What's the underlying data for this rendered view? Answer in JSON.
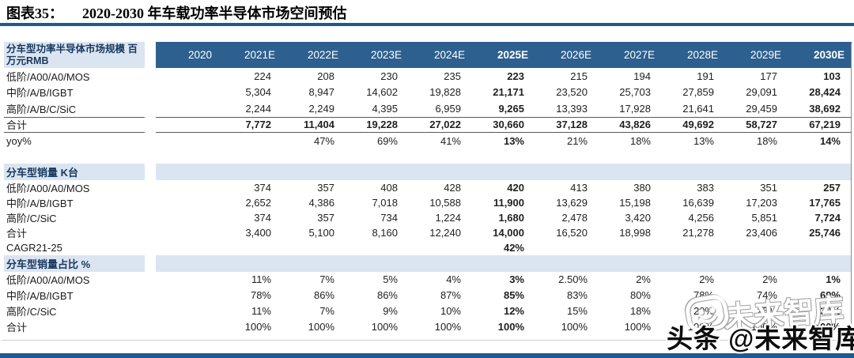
{
  "title": {
    "prefix": "图表35：",
    "text": "2020-2030 年车载功率半导体市场空间预估"
  },
  "colors": {
    "header_band": "#2d608e",
    "rule_color": "#1e5a8c",
    "section_bg": "#dbe5f1",
    "label_text": "#17375e"
  },
  "table": {
    "corner_header": "分车型功率半导体市场规模 百万元RMB",
    "col_headers": [
      "2020",
      "2021E",
      "2022E",
      "2023E",
      "2024E",
      "2025E",
      "2026E",
      "2027E",
      "2028E",
      "2029E",
      "2030E"
    ],
    "bold_col_indexes": [
      5,
      10
    ],
    "sections": [
      {
        "header": null,
        "gap_after": true,
        "rows": [
          {
            "label": "低阶/A00/A0/MOS",
            "values": [
              "",
              "224",
              "208",
              "230",
              "235",
              "223",
              "215",
              "194",
              "191",
              "177",
              "103"
            ]
          },
          {
            "label": "中阶/A/B/IGBT",
            "values": [
              "",
              "5,304",
              "8,947",
              "14,602",
              "19,828",
              "21,171",
              "23,520",
              "25,703",
              "27,859",
              "29,091",
              "28,424"
            ]
          },
          {
            "label": "高阶/A/B/C/SiC",
            "values": [
              "",
              "2,244",
              "2,249",
              "4,395",
              "6,959",
              "9,265",
              "13,393",
              "17,928",
              "21,641",
              "29,459",
              "38,692"
            ]
          },
          {
            "label": "合计",
            "bold_row": true,
            "rule": true,
            "values": [
              "",
              "7,772",
              "11,404",
              "19,228",
              "27,022",
              "30,660",
              "37,128",
              "43,826",
              "49,692",
              "58,727",
              "67,219"
            ]
          },
          {
            "label": "yoy%",
            "values": [
              "",
              "",
              "47%",
              "69%",
              "41%",
              "13%",
              "21%",
              "18%",
              "13%",
              "18%",
              "14%"
            ]
          }
        ]
      },
      {
        "header": "分车型销量 K台",
        "rows": [
          {
            "label": "低阶/A00/A0/MOS",
            "values": [
              "",
              "374",
              "357",
              "408",
              "428",
              "420",
              "413",
              "380",
              "383",
              "351",
              "257"
            ]
          },
          {
            "label": "中阶/A/B/IGBT",
            "values": [
              "",
              "2,652",
              "4,386",
              "7,018",
              "10,588",
              "11,900",
              "13,629",
              "15,198",
              "16,639",
              "17,203",
              "17,765"
            ]
          },
          {
            "label": "高阶/C/SiC",
            "values": [
              "",
              "374",
              "357",
              "734",
              "1,224",
              "1,680",
              "2,478",
              "3,420",
              "4,256",
              "5,851",
              "7,724"
            ]
          },
          {
            "label": "合计",
            "values": [
              "",
              "3,400",
              "5,100",
              "8,160",
              "12,240",
              "14,000",
              "16,520",
              "18,998",
              "21,278",
              "23,406",
              "25,746"
            ]
          },
          {
            "label": "CAGR21-25",
            "values": [
              "",
              "",
              "",
              "",
              "",
              "42%",
              "",
              "",
              "",
              "",
              ""
            ]
          }
        ]
      },
      {
        "header": "分车型销量占比 %",
        "rows": [
          {
            "label": "低阶/A00/A0/MOS",
            "values": [
              "",
              "11%",
              "7%",
              "5%",
              "4%",
              "3%",
              "2.50%",
              "2%",
              "2%",
              "2%",
              "1%"
            ]
          },
          {
            "label": "中阶/A/B/IGBT",
            "values": [
              "",
              "78%",
              "86%",
              "86%",
              "87%",
              "85%",
              "83%",
              "80%",
              "78%",
              "74%",
              "69%"
            ]
          },
          {
            "label": "高阶/C/SiC",
            "values": [
              "",
              "11%",
              "7%",
              "9%",
              "10%",
              "12%",
              "15%",
              "18%",
              "20%",
              "25%",
              "30%"
            ]
          },
          {
            "label": "合计",
            "values": [
              "",
              "100%",
              "100%",
              "100%",
              "100%",
              "100%",
              "100%",
              "100%",
              "100%",
              "100%",
              "100%"
            ]
          }
        ]
      }
    ]
  },
  "watermark": {
    "ghost_text": "未来智库",
    "main_text": "头条 @未来智库",
    "logo": "chat-bubble-logo"
  }
}
